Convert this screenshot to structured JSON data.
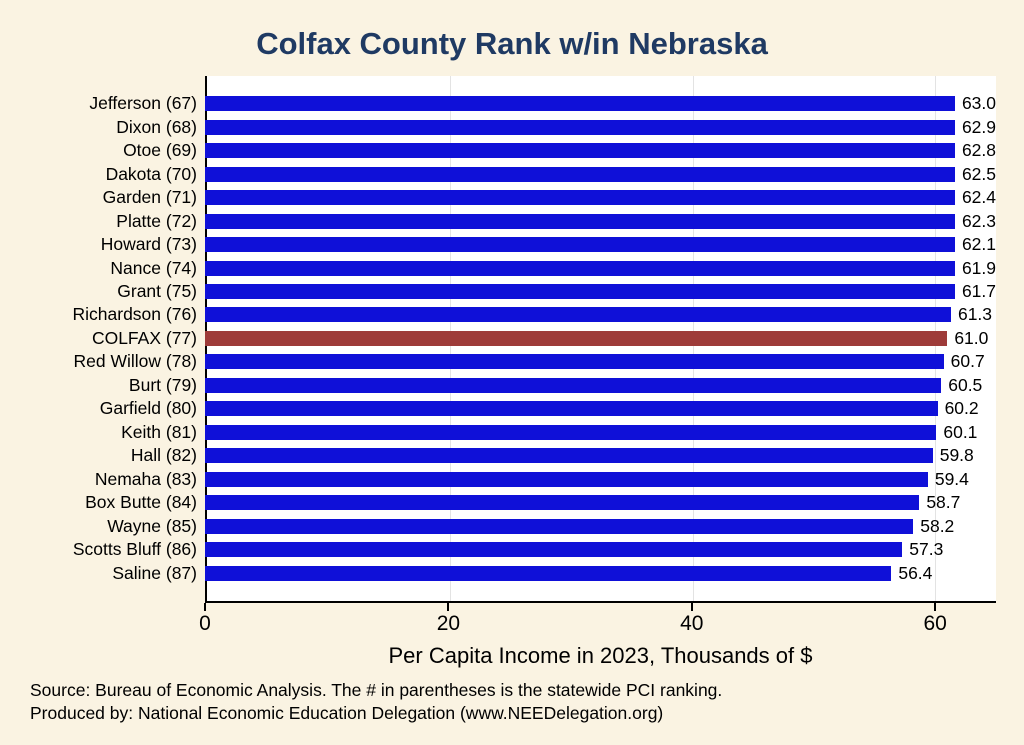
{
  "colors": {
    "background": "#faf3e2",
    "plot_background": "#ffffff",
    "bar": "#0f10d8",
    "highlight_bar": "#9e3b39",
    "title": "#1f3a63",
    "gridline": "#e3e3e3"
  },
  "chart_data": {
    "type": "bar",
    "orientation": "horizontal",
    "title": "Colfax County Rank w/in Nebraska",
    "xlabel": "Per Capita Income in 2023, Thousands of $",
    "ylabel": "",
    "xlim": [
      0,
      65
    ],
    "xticks": [
      0,
      20,
      40,
      60
    ],
    "grid": true,
    "legend": "none",
    "categories": [
      "Jefferson (67)",
      "Dixon (68)",
      "Otoe (69)",
      "Dakota (70)",
      "Garden (71)",
      "Platte (72)",
      "Howard (73)",
      "Nance (74)",
      "Grant (75)",
      "Richardson (76)",
      "COLFAX (77)",
      "Red Willow (78)",
      "Burt (79)",
      "Garfield (80)",
      "Keith (81)",
      "Hall (82)",
      "Nemaha (83)",
      "Box Butte (84)",
      "Wayne (85)",
      "Scotts Bluff (86)",
      "Saline (87)"
    ],
    "values": [
      63.0,
      62.9,
      62.8,
      62.5,
      62.4,
      62.3,
      62.1,
      61.9,
      61.7,
      61.3,
      61.0,
      60.7,
      60.5,
      60.2,
      60.1,
      59.8,
      59.4,
      58.7,
      58.2,
      57.3,
      56.4
    ],
    "highlight_category": "COLFAX (77)",
    "footnotes": [
      "Source: Bureau of Economic Analysis. The # in parentheses is the statewide PCI ranking.",
      "Produced by: National Economic Education Delegation (www.NEEDelegation.org)"
    ]
  }
}
